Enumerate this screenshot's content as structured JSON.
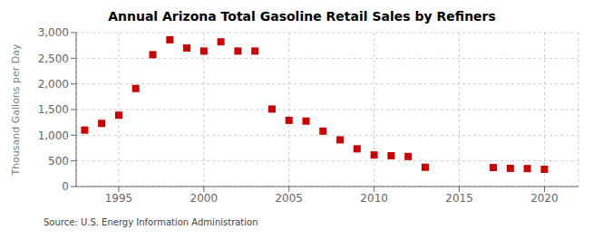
{
  "chart_data": {
    "type": "scatter",
    "title": "Annual Arizona Total Gasoline Retail Sales by Refiners",
    "ylabel": "Thousand Gallons per Day",
    "annotations": [
      "Source: U.S. Energy Information Administration"
    ],
    "x": [
      1993,
      1994,
      1995,
      1996,
      1997,
      1998,
      1999,
      2000,
      2001,
      2002,
      2003,
      2004,
      2005,
      2006,
      2007,
      2008,
      2009,
      2010,
      2011,
      2012,
      2013,
      2017,
      2018,
      2019,
      2020
    ],
    "values": [
      1100,
      1230,
      1390,
      1910,
      2570,
      2860,
      2700,
      2640,
      2820,
      2640,
      2640,
      1510,
      1290,
      1275,
      1080,
      910,
      735,
      615,
      600,
      585,
      375,
      370,
      355,
      350,
      335
    ],
    "color": "#cc0000",
    "marker": "square",
    "xlim": [
      1992.5,
      2022
    ],
    "ylim": [
      0,
      3000
    ],
    "xticks": [
      1995,
      2000,
      2005,
      2010,
      2015,
      2020
    ],
    "yticks": [
      0,
      500,
      {
        "value": 1000,
        "label": "1,000"
      },
      {
        "value": 1500,
        "label": "1,500"
      },
      {
        "value": 2000,
        "label": "2,000"
      },
      {
        "value": 2500,
        "label": "2,500"
      },
      {
        "value": 3000,
        "label": "3,000"
      }
    ],
    "grid": true
  }
}
